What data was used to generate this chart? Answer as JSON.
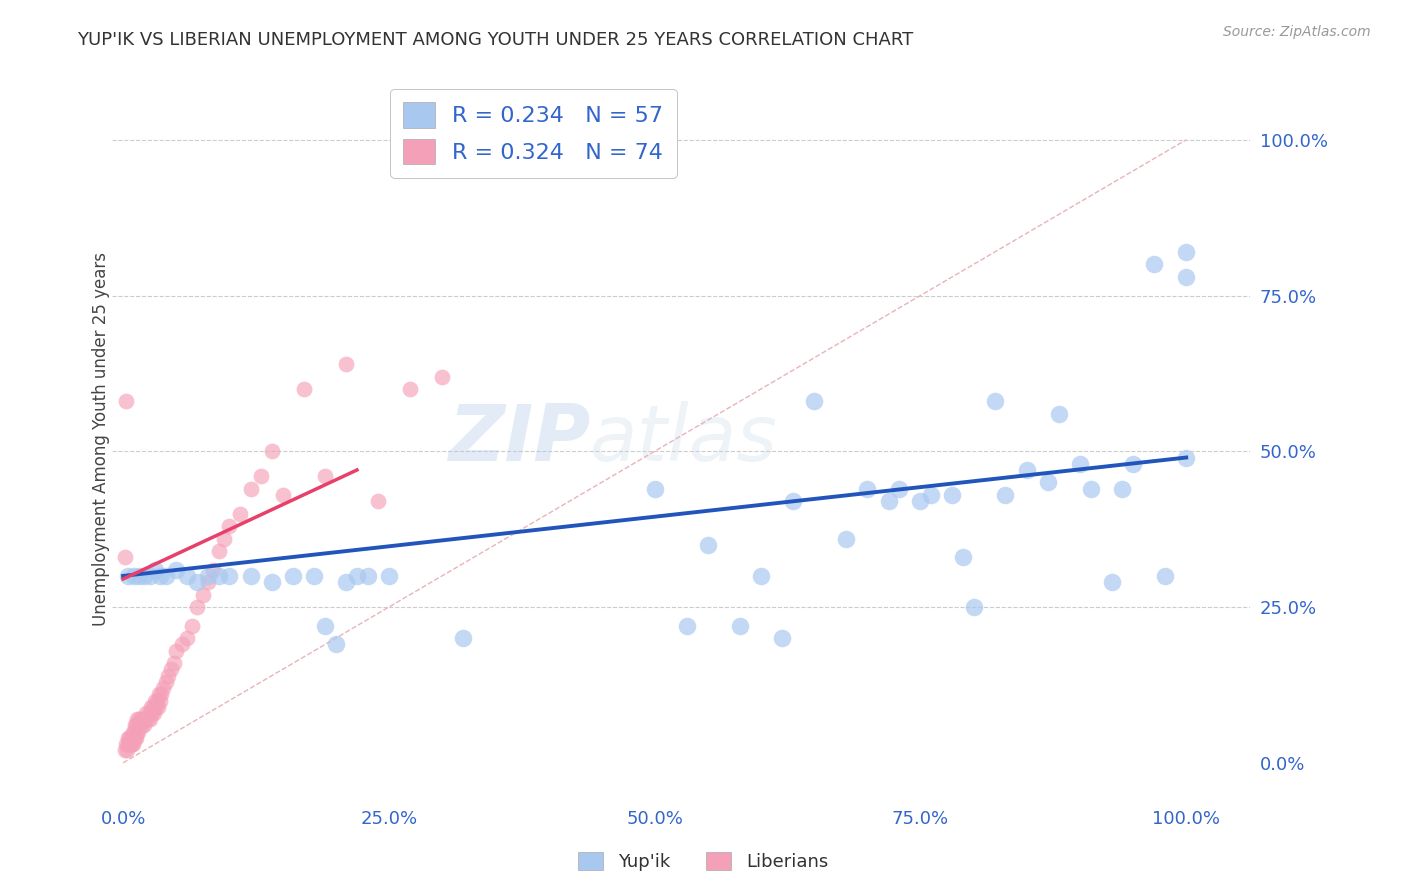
{
  "title": "YUP'IK VS LIBERIAN UNEMPLOYMENT AMONG YOUTH UNDER 25 YEARS CORRELATION CHART",
  "source": "Source: ZipAtlas.com",
  "xlabel_ticks": [
    "0.0%",
    "25.0%",
    "50.0%",
    "75.0%",
    "100.0%"
  ],
  "xlabel_tick_vals": [
    0.0,
    0.25,
    0.5,
    0.75,
    1.0
  ],
  "ylabel": "Unemployment Among Youth under 25 years",
  "ylabel_ticks": [
    "0.0%",
    "25.0%",
    "50.0%",
    "75.0%",
    "100.0%"
  ],
  "ylabel_tick_vals": [
    0.0,
    0.25,
    0.5,
    0.75,
    1.0
  ],
  "yupik_color": "#a8c8f0",
  "liberian_color": "#f4a0b8",
  "yupik_line_color": "#2255bb",
  "liberian_line_color": "#e8406a",
  "diagonal_color": "#e8b4b8",
  "background_color": "#ffffff",
  "grid_color": "#cccccc",
  "watermark_zip": "ZIP",
  "watermark_atlas": "atlas",
  "yupik_line_start_y": 0.3,
  "yupik_line_end_y": 0.49,
  "liberian_line_start_y": 0.3,
  "liberian_line_end_y": 0.47,
  "yupik_x": [
    0.19,
    0.2,
    0.23,
    0.32,
    0.5,
    0.53,
    0.55,
    0.58,
    0.6,
    0.62,
    0.63,
    0.65,
    0.68,
    0.7,
    0.72,
    0.73,
    0.75,
    0.76,
    0.78,
    0.79,
    0.8,
    0.82,
    0.83,
    0.85,
    0.87,
    0.88,
    0.9,
    0.91,
    0.93,
    0.94,
    0.95,
    0.97,
    0.98,
    1.0,
    1.0,
    1.0,
    0.005,
    0.01,
    0.015,
    0.02,
    0.025,
    0.03,
    0.035,
    0.04,
    0.05,
    0.06,
    0.07,
    0.08,
    0.09,
    0.1,
    0.12,
    0.14,
    0.16,
    0.18,
    0.21,
    0.22,
    0.25
  ],
  "yupik_y": [
    0.22,
    0.19,
    0.3,
    0.2,
    0.44,
    0.22,
    0.35,
    0.22,
    0.3,
    0.2,
    0.42,
    0.58,
    0.36,
    0.44,
    0.42,
    0.44,
    0.42,
    0.43,
    0.43,
    0.33,
    0.25,
    0.58,
    0.43,
    0.47,
    0.45,
    0.56,
    0.48,
    0.44,
    0.29,
    0.44,
    0.48,
    0.8,
    0.3,
    0.78,
    0.82,
    0.49,
    0.3,
    0.3,
    0.3,
    0.3,
    0.3,
    0.31,
    0.3,
    0.3,
    0.31,
    0.3,
    0.29,
    0.3,
    0.3,
    0.3,
    0.3,
    0.29,
    0.3,
    0.3,
    0.29,
    0.3,
    0.3
  ],
  "liberian_x": [
    0.002,
    0.003,
    0.004,
    0.005,
    0.005,
    0.006,
    0.006,
    0.007,
    0.007,
    0.008,
    0.008,
    0.009,
    0.009,
    0.01,
    0.01,
    0.011,
    0.011,
    0.012,
    0.012,
    0.013,
    0.013,
    0.014,
    0.015,
    0.015,
    0.016,
    0.017,
    0.018,
    0.019,
    0.02,
    0.021,
    0.022,
    0.023,
    0.024,
    0.025,
    0.026,
    0.027,
    0.028,
    0.029,
    0.03,
    0.031,
    0.032,
    0.033,
    0.034,
    0.035,
    0.036,
    0.038,
    0.04,
    0.042,
    0.045,
    0.048,
    0.05,
    0.055,
    0.06,
    0.065,
    0.07,
    0.075,
    0.08,
    0.085,
    0.09,
    0.095,
    0.1,
    0.11,
    0.12,
    0.13,
    0.14,
    0.15,
    0.17,
    0.19,
    0.21,
    0.24,
    0.27,
    0.3,
    0.002,
    0.003
  ],
  "liberian_y": [
    0.02,
    0.03,
    0.02,
    0.03,
    0.04,
    0.03,
    0.04,
    0.03,
    0.04,
    0.03,
    0.04,
    0.03,
    0.05,
    0.04,
    0.05,
    0.04,
    0.06,
    0.04,
    0.06,
    0.05,
    0.07,
    0.05,
    0.06,
    0.07,
    0.06,
    0.07,
    0.06,
    0.07,
    0.06,
    0.07,
    0.08,
    0.07,
    0.08,
    0.07,
    0.09,
    0.08,
    0.09,
    0.08,
    0.1,
    0.09,
    0.1,
    0.09,
    0.11,
    0.1,
    0.11,
    0.12,
    0.13,
    0.14,
    0.15,
    0.16,
    0.18,
    0.19,
    0.2,
    0.22,
    0.25,
    0.27,
    0.29,
    0.31,
    0.34,
    0.36,
    0.38,
    0.4,
    0.44,
    0.46,
    0.5,
    0.43,
    0.6,
    0.46,
    0.64,
    0.42,
    0.6,
    0.62,
    0.33,
    0.58
  ]
}
